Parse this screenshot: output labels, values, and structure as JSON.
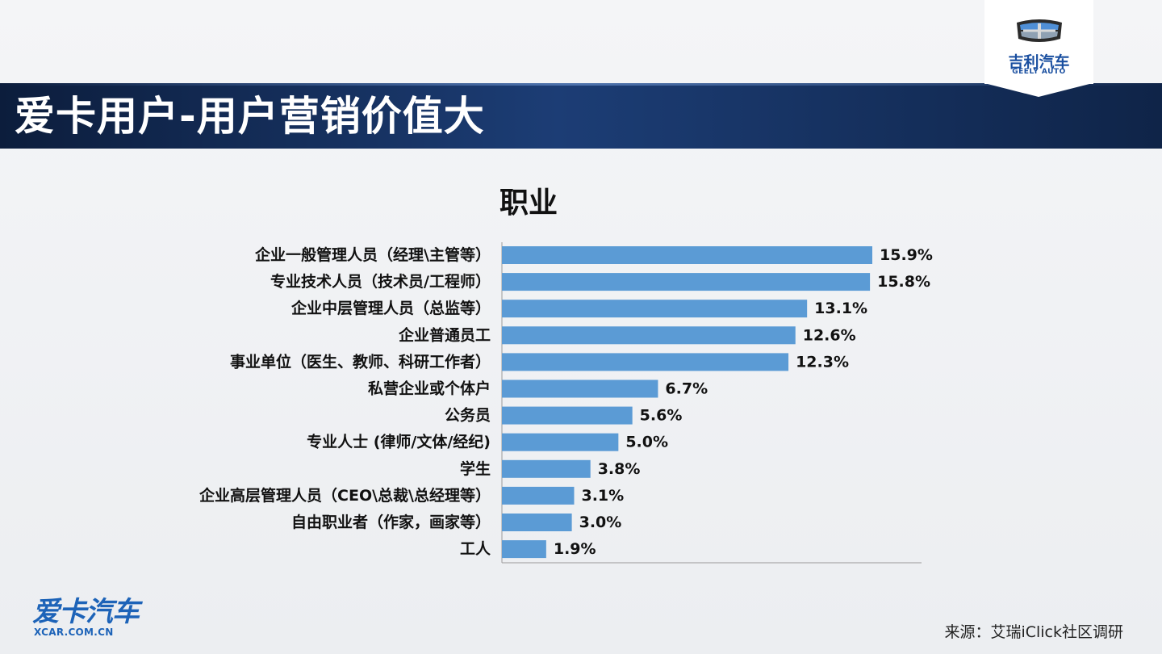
{
  "slide": {
    "title": "爱卡用户-用户营销价值大",
    "source": "来源：艾瑞iClick社区调研"
  },
  "brand": {
    "cn": "吉利汽车",
    "en": "GEELY AUTO",
    "color": "#1a4fa0"
  },
  "footer_logo": {
    "cn": "爱卡汽车",
    "en": "XCAR.COM.CN",
    "color": "#1d63b8"
  },
  "chart_data": {
    "type": "bar",
    "orientation": "horizontal",
    "title": "职业",
    "categories": [
      "企业一般管理人员（经理\\主管等）",
      "专业技术人员（技术员/工程师）",
      "企业中层管理人员（总监等）",
      "企业普通员工",
      "事业单位（医生、教师、科研工作者）",
      "私营企业或个体户",
      "公务员",
      "专业人士 (律师/文体/经纪)",
      "学生",
      "企业高层管理人员（CEO\\总裁\\总经理等）",
      "自由职业者（作家，画家等）",
      "工人"
    ],
    "values": [
      15.9,
      15.8,
      13.1,
      12.6,
      12.3,
      6.7,
      5.6,
      5.0,
      3.8,
      3.1,
      3.0,
      1.9
    ],
    "value_labels": [
      "15.9%",
      "15.8%",
      "13.1%",
      "12.6%",
      "12.3%",
      "6.7%",
      "5.6%",
      "5.0%",
      "3.8%",
      "3.1%",
      "3.0%",
      "1.9%"
    ],
    "xlim": [
      0,
      18
    ],
    "grid": false,
    "legend": "none",
    "bar_color": "#5b9bd5"
  }
}
